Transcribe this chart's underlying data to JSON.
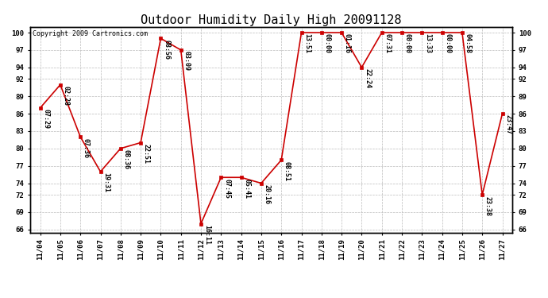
{
  "title": "Outdoor Humidity Daily High 20091128",
  "copyright_text": "Copyright 2009 Cartronics.com",
  "x_labels": [
    "11/04",
    "11/05",
    "11/06",
    "11/07",
    "11/08",
    "11/09",
    "11/10",
    "11/11",
    "11/12",
    "11/13",
    "11/14",
    "11/15",
    "11/16",
    "11/17",
    "11/18",
    "11/19",
    "11/20",
    "11/21",
    "11/22",
    "11/23",
    "11/24",
    "11/25",
    "11/26",
    "11/27"
  ],
  "y_values": [
    87,
    91,
    82,
    76,
    80,
    81,
    99,
    97,
    67,
    75,
    75,
    74,
    78,
    100,
    100,
    100,
    94,
    100,
    100,
    100,
    100,
    100,
    72,
    86
  ],
  "time_labels": [
    "07:29",
    "02:28",
    "07:36",
    "19:31",
    "08:36",
    "22:51",
    "08:56",
    "03:09",
    "16:11",
    "07:45",
    "05:41",
    "20:16",
    "08:51",
    "13:51",
    "00:00",
    "01:16",
    "22:24",
    "07:31",
    "00:00",
    "13:33",
    "00:00",
    "04:58",
    "23:38",
    "23:47"
  ],
  "y_ticks": [
    66,
    69,
    72,
    74,
    77,
    80,
    83,
    86,
    89,
    92,
    94,
    97,
    100
  ],
  "ylim": [
    65.5,
    101
  ],
  "line_color": "#cc0000",
  "marker_color": "#cc0000",
  "bg_color": "#ffffff",
  "grid_color": "#bbbbbb",
  "title_fontsize": 11,
  "label_fontsize": 6,
  "tick_fontsize": 6.5,
  "copyright_fontsize": 6
}
